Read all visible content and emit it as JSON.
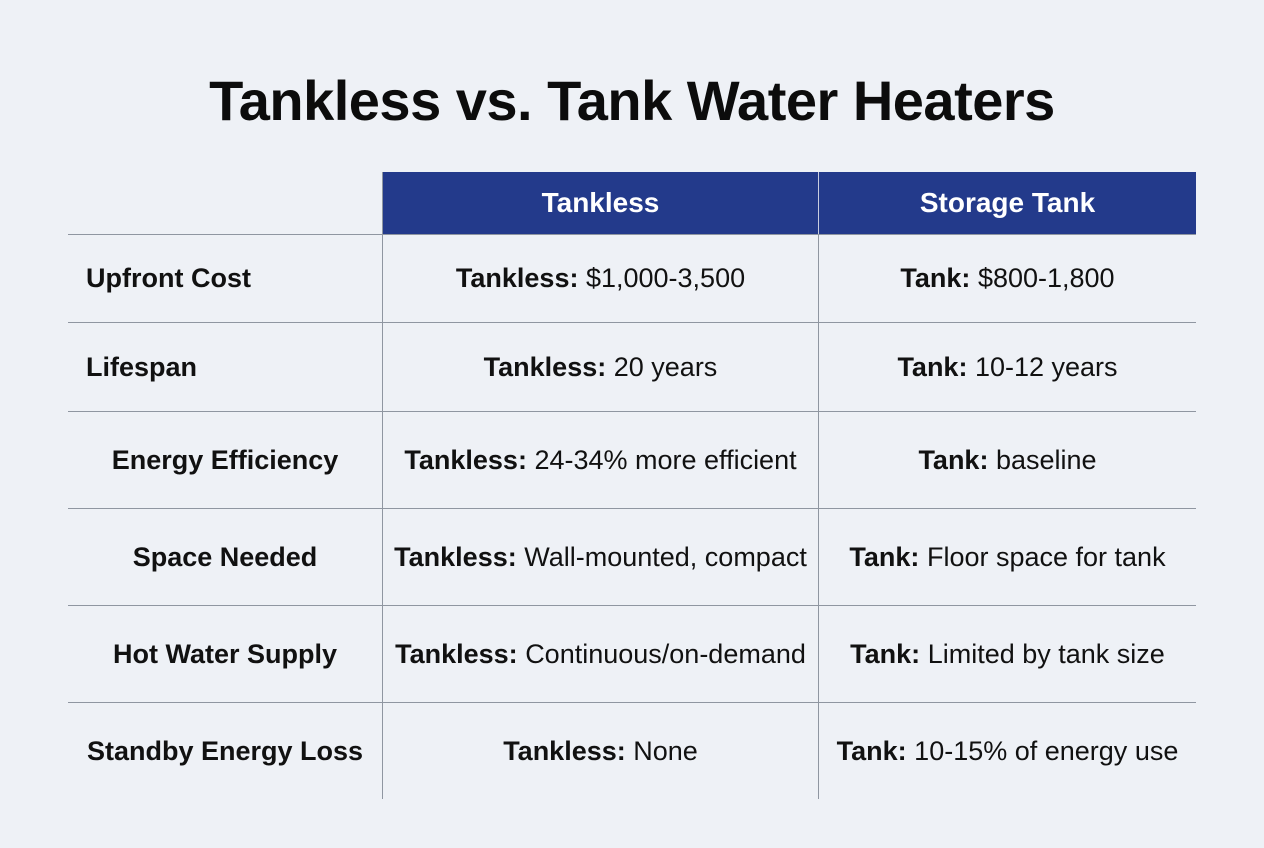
{
  "title": "Tankless vs. Tank Water Heaters",
  "header": {
    "col1": "Tankless",
    "col2": "Storage Tank"
  },
  "rows": [
    {
      "label": "Upfront Cost",
      "tankless_prefix": "Tankless:",
      "tankless_value": "$1,000-3,500",
      "tank_prefix": "Tank:",
      "tank_value": "$800-1,800"
    },
    {
      "label": "Lifespan",
      "tankless_prefix": "Tankless:",
      "tankless_value": "20 years",
      "tank_prefix": "Tank:",
      "tank_value": "10-12 years"
    },
    {
      "label": "Energy Efficiency",
      "tankless_prefix": "Tankless:",
      "tankless_value": "24-34% more efficient",
      "tank_prefix": "Tank:",
      "tank_value": "baseline"
    },
    {
      "label": "Space Needed",
      "tankless_prefix": "Tankless:",
      "tankless_value": "Wall-mounted, compact",
      "tank_prefix": "Tank:",
      "tank_value": "Floor space for tank"
    },
    {
      "label": "Hot Water Supply",
      "tankless_prefix": "Tankless:",
      "tankless_value": "Continuous/on-demand",
      "tank_prefix": "Tank:",
      "tank_value": "Limited by tank size"
    },
    {
      "label": "Standby Energy Loss",
      "tankless_prefix": "Tankless:",
      "tankless_value": "None",
      "tank_prefix": "Tank:",
      "tank_value": "10-15% of energy use"
    }
  ],
  "colors": {
    "header_bg": "#233a8b",
    "header_text": "#ffffff",
    "page_bg": "#eef1f6",
    "grid": "#8f96a1"
  }
}
